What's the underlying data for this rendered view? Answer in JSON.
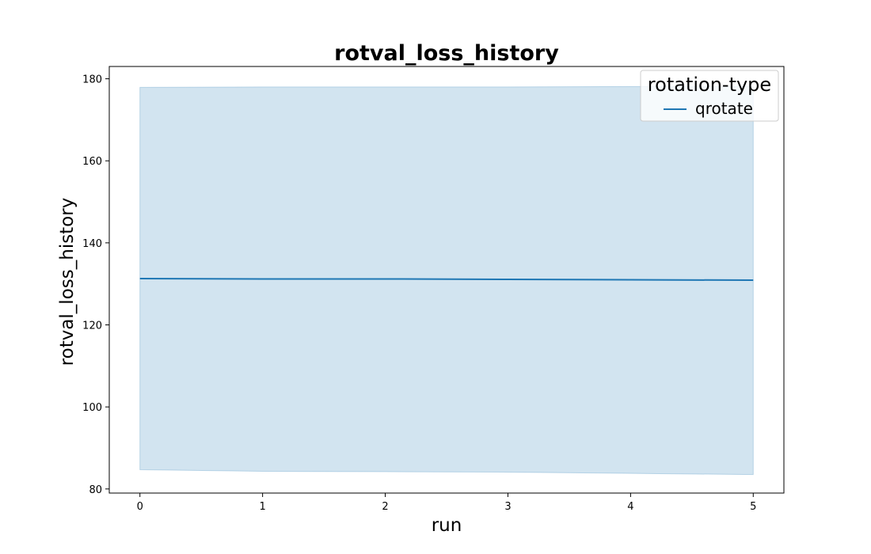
{
  "chart_data": {
    "type": "line",
    "title": "rotval_loss_history",
    "xlabel": "run",
    "ylabel": "rotval_loss_history",
    "x": [
      0,
      1,
      2,
      3,
      4,
      5
    ],
    "xlim": [
      -0.25,
      5.25
    ],
    "ylim": [
      79,
      183
    ],
    "xticks": [
      0,
      1,
      2,
      3,
      4,
      5
    ],
    "yticks": [
      80,
      100,
      120,
      140,
      160,
      180
    ],
    "grid": false,
    "legend": {
      "title": "rotation-type",
      "placement": "top-right"
    },
    "series": [
      {
        "name": "qrotate",
        "color": "#1f77b4",
        "values": [
          131.3,
          131.2,
          131.2,
          131.1,
          131.0,
          130.9
        ],
        "band_upper": [
          177.9,
          178.0,
          178.0,
          178.0,
          178.1,
          178.1
        ],
        "band_lower": [
          84.7,
          84.3,
          84.2,
          84.1,
          83.8,
          83.5
        ],
        "band_color": "#1f77b4",
        "band_opacity": 0.2
      }
    ]
  }
}
